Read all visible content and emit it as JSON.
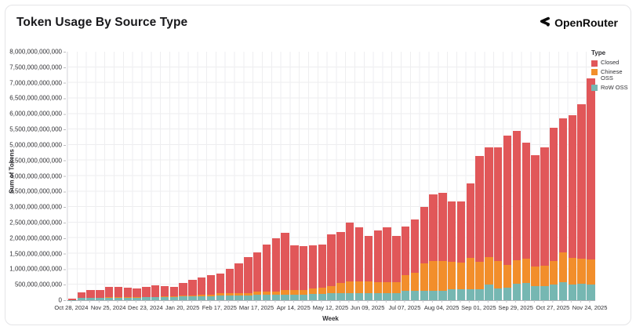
{
  "card": {
    "title": "Token Usage By Source Type"
  },
  "brand": {
    "name": "OpenRouter",
    "logo_icon": "openrouter-chevron",
    "logo_color": "#0a0a0a"
  },
  "legend": {
    "title": "Type",
    "items": [
      {
        "label": "Closed",
        "color": "#e15759"
      },
      {
        "label": "Chinese OSS",
        "color": "#f28e2b"
      },
      {
        "label": "RoW OSS",
        "color": "#76b7b2"
      }
    ]
  },
  "chart_data": {
    "type": "bar",
    "subtype": "stacked-vertical",
    "title": "Token Usage By Source Type",
    "xlabel": "Week",
    "ylabel": "Sum of Tokens",
    "ylim": [
      0,
      8000000000000
    ],
    "ytick_step": 500000000000,
    "grid": true,
    "legend_position": "top-right",
    "n_bars": 57,
    "x_first_week": "Oct 28, 2024",
    "x_last_week": "Nov 24, 2025",
    "x_tick_every_n_bars": 4,
    "x_tick_labels": [
      "Oct 28, 2024",
      "Nov 25, 2024",
      "Dec 23, 2024",
      "Jan 20, 2025",
      "Feb 17, 2025",
      "Mar 17, 2025",
      "Apr 14, 2025",
      "May 12, 2025",
      "Jun 09, 2025",
      "Jul 07, 2025",
      "Aug 04, 2025",
      "Sep 01, 2025",
      "Sep 29, 2025",
      "Oct 27, 2025",
      "Nov 24, 2025"
    ],
    "values_unit": "billion_tokens",
    "series": [
      {
        "name": "Closed",
        "color": "#e15759",
        "values": [
          30,
          180,
          250,
          260,
          330,
          340,
          320,
          280,
          320,
          360,
          335,
          315,
          390,
          490,
          575,
          635,
          630,
          770,
          950,
          1170,
          1280,
          1530,
          1730,
          1850,
          1430,
          1410,
          1390,
          1390,
          1660,
          1645,
          1895,
          1745,
          1465,
          1650,
          1750,
          1490,
          1560,
          1700,
          1820,
          2130,
          2180,
          1950,
          1955,
          2395,
          3410,
          3520,
          3665,
          4165,
          4145,
          3740,
          3600,
          3800,
          4305,
          4315,
          4605,
          4990,
          5835
        ]
      },
      {
        "name": "Chinese OSS",
        "color": "#f28e2b",
        "values": [
          0,
          5,
          5,
          5,
          10,
          10,
          10,
          10,
          10,
          10,
          15,
          15,
          40,
          40,
          45,
          45,
          85,
          85,
          85,
          85,
          100,
          100,
          100,
          145,
          145,
          145,
          170,
          200,
          220,
          320,
          360,
          360,
          360,
          350,
          350,
          350,
          510,
          590,
          880,
          970,
          970,
          885,
          870,
          1010,
          885,
          885,
          865,
          715,
          755,
          775,
          625,
          675,
          740,
          975,
          840,
          800,
          800
        ]
      },
      {
        "name": "RoW OSS",
        "color": "#76b7b2",
        "values": [
          10,
          75,
          75,
          75,
          80,
          80,
          80,
          80,
          100,
          100,
          100,
          100,
          120,
          120,
          120,
          120,
          145,
          145,
          145,
          145,
          170,
          170,
          170,
          185,
          185,
          185,
          200,
          210,
          230,
          235,
          235,
          235,
          235,
          240,
          240,
          240,
          300,
          300,
          300,
          300,
          300,
          345,
          345,
          345,
          345,
          515,
          390,
          410,
          540,
          555,
          455,
          445,
          515,
          570,
          515,
          530,
          515
        ]
      }
    ]
  }
}
